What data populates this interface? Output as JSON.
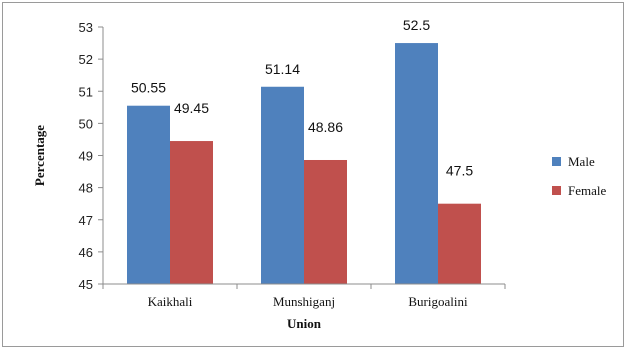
{
  "chart_data": {
    "type": "bar",
    "categories": [
      "Kaikhali",
      "Munshiganj",
      "Burigoalini"
    ],
    "series": [
      {
        "name": "Male",
        "values": [
          50.55,
          51.14,
          52.5
        ],
        "color": "#4F81BD",
        "labels": [
          "50.55",
          "51.14",
          "52.5"
        ]
      },
      {
        "name": "Female",
        "values": [
          49.45,
          48.86,
          47.5
        ],
        "color": "#C0504D",
        "labels": [
          "49.45",
          "48.86",
          "47.5"
        ]
      }
    ],
    "xlabel": "Union",
    "ylabel": "Percentage",
    "ylim": [
      45,
      53
    ],
    "yticks": [
      "45",
      "46",
      "47",
      "48",
      "49",
      "50",
      "51",
      "52",
      "53"
    ],
    "grid": false,
    "legend_position": "right"
  }
}
